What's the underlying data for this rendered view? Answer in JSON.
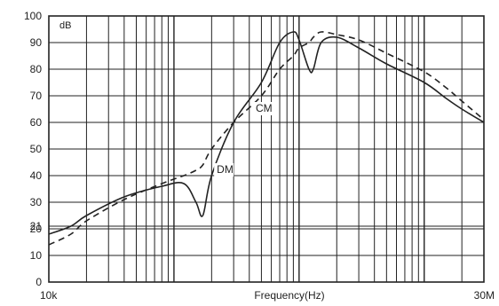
{
  "chart_data": {
    "type": "line",
    "title": "",
    "xlabel": "Frequency(Hz)",
    "ylabel": "",
    "unit_label": "dB",
    "x_scale": "log",
    "xlim": [
      10000,
      30000000
    ],
    "ylim": [
      0,
      100
    ],
    "grid": true,
    "x_tick_labels": [
      {
        "value": 10000,
        "label": "10k"
      },
      {
        "value": 30000000,
        "label": "30M"
      }
    ],
    "y_ticks": [
      0,
      10,
      20,
      21,
      30,
      40,
      50,
      60,
      70,
      80,
      90,
      100
    ],
    "x": [
      10000,
      15000,
      20000,
      40000,
      80000,
      120000,
      150000,
      170000,
      200000,
      300000,
      500000,
      700000,
      900000,
      1000000,
      1200000,
      1300000,
      1500000,
      2000000,
      3000000,
      5000000,
      10000000,
      15000000,
      20000000,
      30000000
    ],
    "series": [
      {
        "name": "CM",
        "style": "solid",
        "color": "#222222",
        "values": [
          18,
          21,
          25,
          32,
          36,
          37,
          30,
          25,
          40,
          60,
          75,
          90,
          94,
          91,
          80,
          80,
          90,
          92,
          88,
          82,
          75,
          69,
          65,
          60
        ]
      },
      {
        "name": "DM",
        "style": "dashed",
        "color": "#222222",
        "values": [
          14,
          18,
          23,
          31,
          37,
          40,
          42,
          44,
          50,
          60,
          70,
          80,
          85,
          88,
          90,
          92,
          94,
          93,
          91,
          86,
          79,
          73,
          68,
          61
        ]
      }
    ],
    "annotations": [
      {
        "text": "CM",
        "x": 450000,
        "y": 64
      },
      {
        "text": "DM",
        "x": 220000,
        "y": 41
      }
    ]
  }
}
